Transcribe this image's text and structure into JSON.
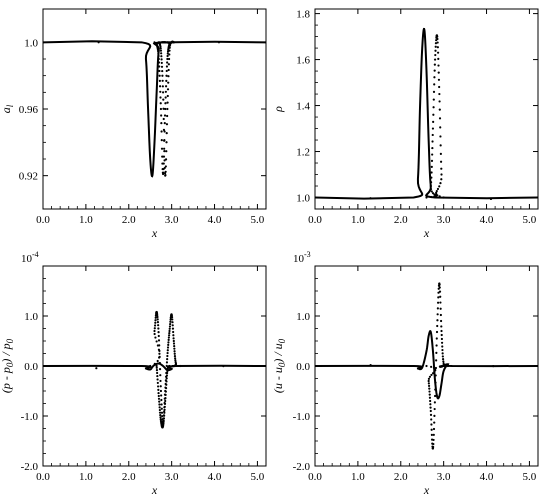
{
  "chart_data": [
    {
      "type": "line",
      "panel": "top-left",
      "ylabel": "a",
      "ylabel_sub": "l",
      "xlabel": "x",
      "xlim": [
        0,
        5.2
      ],
      "ylim": [
        0.9,
        1.02
      ],
      "xticks": [
        0,
        1,
        2,
        3,
        4,
        5
      ],
      "xtick_labels": [
        "0.0",
        "1.0",
        "2.0",
        "3.0",
        "4.0",
        "5.0"
      ],
      "yticks": [
        0.92,
        0.96,
        1.0
      ],
      "ytick_labels": [
        "0.92",
        "0.96",
        "1.0"
      ],
      "exponent_label": "",
      "series": [
        {
          "style": "solid",
          "values_x": [
            0.0,
            2.3,
            2.4,
            2.45,
            2.5,
            2.55,
            2.6,
            2.65,
            2.7,
            2.8,
            5.2
          ],
          "values_y": [
            1.0,
            1.0,
            0.99,
            0.96,
            0.93,
            0.92,
            0.94,
            0.97,
            0.995,
            1.0,
            1.0
          ]
        },
        {
          "style": "dotted",
          "values_x": [
            0.0,
            2.6,
            2.65,
            2.7,
            2.75,
            2.8,
            2.85,
            2.9,
            2.95,
            3.0,
            5.2
          ],
          "values_y": [
            1.0,
            1.0,
            0.999,
            0.99,
            0.96,
            0.921,
            0.96,
            0.99,
            0.999,
            1.0,
            1.0
          ]
        },
        {
          "style": "dotted",
          "values_x": [
            2.7,
            2.75,
            2.8,
            2.85,
            2.9,
            2.95,
            3.0,
            3.05
          ],
          "values_y": [
            1.0,
            0.995,
            0.97,
            0.92,
            0.96,
            0.995,
            1.0,
            1.0
          ]
        }
      ]
    },
    {
      "type": "line",
      "panel": "top-right",
      "ylabel": "ρ",
      "ylabel_sub": "",
      "xlabel": "x",
      "xlim": [
        0,
        5.2
      ],
      "ylim": [
        0.95,
        1.82
      ],
      "xticks": [
        0,
        1,
        2,
        3,
        4,
        5
      ],
      "xtick_labels": [
        "0.0",
        "1.0",
        "2.0",
        "3.0",
        "4.0",
        "5.0"
      ],
      "yticks": [
        1.0,
        1.2,
        1.4,
        1.6,
        1.8
      ],
      "ytick_labels": [
        "1.0",
        "1.2",
        "1.4",
        "1.6",
        "1.8"
      ],
      "exponent_label": "",
      "series": [
        {
          "style": "solid",
          "values_x": [
            0.0,
            2.3,
            2.4,
            2.45,
            2.5,
            2.55,
            2.6,
            2.65,
            2.7,
            2.8,
            5.2
          ],
          "values_y": [
            1.0,
            1.0,
            1.08,
            1.4,
            1.65,
            1.73,
            1.55,
            1.25,
            1.05,
            1.0,
            1.0
          ]
        },
        {
          "style": "dotted",
          "values_x": [
            0.0,
            2.6,
            2.7,
            2.75,
            2.8,
            2.85,
            2.9,
            2.95,
            3.0,
            5.2
          ],
          "values_y": [
            1.0,
            1.0,
            1.05,
            1.3,
            1.6,
            1.7,
            1.45,
            1.1,
            1.0,
            1.0
          ]
        }
      ]
    },
    {
      "type": "line",
      "panel": "bottom-left",
      "ylabel": "(p - p",
      "ylabel_sub": "0",
      "ylabel_rest": ") / p",
      "ylabel_sub2": "0",
      "xlabel": "x",
      "xlim": [
        0,
        5.2
      ],
      "ylim": [
        -2.0,
        2.0
      ],
      "xticks": [
        0,
        1,
        2,
        3,
        4,
        5
      ],
      "xtick_labels": [
        "0.0",
        "1.0",
        "2.0",
        "3.0",
        "4.0",
        "5.0"
      ],
      "yticks": [
        -2.0,
        -1.0,
        0.0,
        1.0,
        2.0
      ],
      "ytick_labels": [
        "-2.0",
        "-1.0",
        "0.0",
        "1.0",
        ""
      ],
      "exponent_label": "10",
      "exponent_power": "-4",
      "series": [
        {
          "style": "solid",
          "values_x": [
            0.0,
            2.3,
            2.4,
            2.5,
            2.55,
            2.6,
            2.7,
            2.8,
            2.9,
            3.0,
            3.1,
            5.2
          ],
          "values_y": [
            0.0,
            0.0,
            -0.05,
            -0.07,
            -0.02,
            0.02,
            0.05,
            0.0,
            -0.08,
            -0.06,
            0.0,
            0.0
          ]
        },
        {
          "style": "dotted",
          "values_x": [
            0.0,
            2.5,
            2.6,
            2.65,
            2.7,
            2.75,
            2.8,
            2.85,
            2.9,
            2.95,
            3.0,
            3.05,
            3.1,
            3.2,
            5.2
          ],
          "values_y": [
            0.0,
            0.0,
            0.7,
            1.08,
            0.6,
            -0.5,
            -1.15,
            -0.5,
            0.2,
            0.7,
            1.03,
            0.5,
            0.05,
            0.0,
            0.0
          ]
        },
        {
          "style": "dotted",
          "values_x": [
            2.65,
            2.7,
            2.75,
            2.8,
            2.85,
            2.9,
            2.95
          ],
          "values_y": [
            0.0,
            -0.6,
            -1.1,
            -1.2,
            -0.7,
            -0.1,
            0.0
          ]
        }
      ]
    },
    {
      "type": "line",
      "panel": "bottom-right",
      "ylabel": "(u - u",
      "ylabel_sub": "0",
      "ylabel_rest": ") / u",
      "ylabel_sub2": "0",
      "xlabel": "x",
      "xlim": [
        0,
        5.2
      ],
      "ylim": [
        -2.0,
        2.0
      ],
      "xticks": [
        0,
        1,
        2,
        3,
        4,
        5
      ],
      "xtick_labels": [
        "0.0",
        "1.0",
        "2.0",
        "3.0",
        "4.0",
        "5.0"
      ],
      "yticks": [
        -2.0,
        -1.0,
        0.0,
        1.0,
        2.0
      ],
      "ytick_labels": [
        "-2.0",
        "-1.0",
        "0.0",
        "1.0",
        ""
      ],
      "exponent_label": "10",
      "exponent_power": "-3",
      "series": [
        {
          "style": "solid",
          "values_x": [
            0.0,
            2.3,
            2.4,
            2.5,
            2.6,
            2.65,
            2.7,
            2.75,
            2.8,
            2.85,
            2.9,
            2.95,
            3.0,
            3.1,
            3.2,
            5.2
          ],
          "values_y": [
            0.0,
            0.0,
            -0.05,
            -0.03,
            0.3,
            0.6,
            0.68,
            0.3,
            -0.3,
            -0.62,
            -0.6,
            -0.35,
            -0.1,
            0.03,
            0.0,
            0.0
          ]
        },
        {
          "style": "dotted",
          "values_x": [
            0.0,
            2.6,
            2.65,
            2.7,
            2.75,
            2.8,
            2.85,
            2.9,
            2.95,
            3.0,
            3.1,
            5.2
          ],
          "values_y": [
            0.0,
            0.0,
            -0.3,
            -0.9,
            -1.65,
            -0.6,
            0.8,
            1.65,
            0.7,
            0.05,
            0.0,
            0.0
          ]
        }
      ]
    }
  ]
}
